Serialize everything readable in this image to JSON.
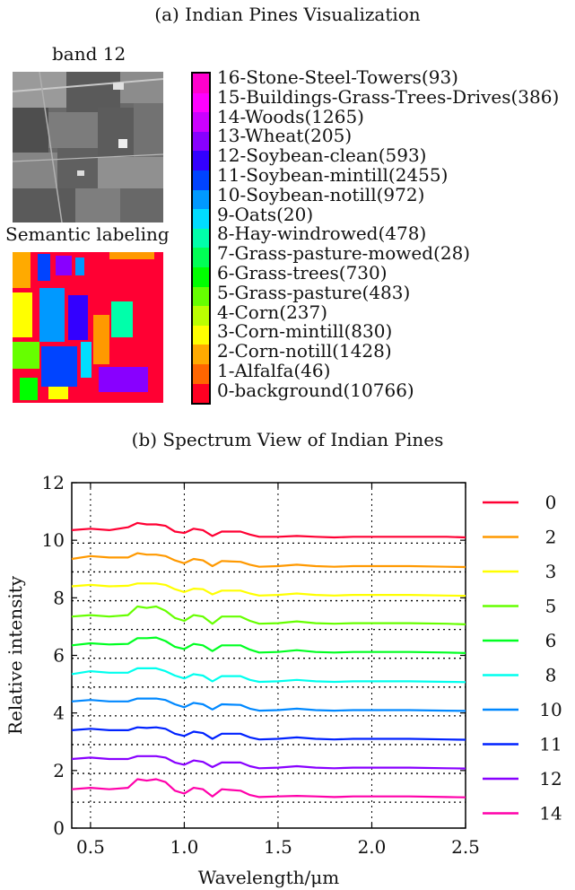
{
  "figure": {
    "caption_a": "(a) Indian Pines Visualization",
    "caption_b": "(b) Spectrum View of Indian Pines",
    "band_title": "band 12",
    "semantic_title": "Semantic labeling"
  },
  "classes": [
    {
      "label": "16-Stone-Steel-Towers(93)",
      "color": "#ff00cc"
    },
    {
      "label": "15-Buildings-Grass-Trees-Drives(386)",
      "color": "#ff00ff"
    },
    {
      "label": "14-Woods(1265)",
      "color": "#cc00ff"
    },
    {
      "label": "13-Wheat(205)",
      "color": "#8800ff"
    },
    {
      "label": "12-Soybean-clean(593)",
      "color": "#3300ff"
    },
    {
      "label": "11-Soybean-mintill(2455)",
      "color": "#0044ff"
    },
    {
      "label": "10-Soybean-notill(972)",
      "color": "#0099ff"
    },
    {
      "label": "9-Oats(20)",
      "color": "#00ddff"
    },
    {
      "label": "8-Hay-windrowed(478)",
      "color": "#00ffaa"
    },
    {
      "label": "7-Grass-pasture-mowed(28)",
      "color": "#00ff55"
    },
    {
      "label": "6-Grass-trees(730)",
      "color": "#00ff00"
    },
    {
      "label": "5-Grass-pasture(483)",
      "color": "#66ff00"
    },
    {
      "label": "4-Corn(237)",
      "color": "#bbff00"
    },
    {
      "label": "3-Corn-mintill(830)",
      "color": "#ffff00"
    },
    {
      "label": "2-Corn-notill(1428)",
      "color": "#ffaa00"
    },
    {
      "label": "1-Alfalfa(46)",
      "color": "#ff6600"
    },
    {
      "label": "0-background(10766)",
      "color": "#ff0022"
    }
  ],
  "chart_data": {
    "type": "line",
    "title": "(b) Spectrum View of Indian Pines",
    "xlabel": "Wavelength/μm",
    "ylabel": "Relative intensity",
    "xlim": [
      0.4,
      2.5
    ],
    "ylim": [
      0,
      12
    ],
    "xticks": [
      "0.5",
      "1.0",
      "1.5",
      "2.0",
      "2.5"
    ],
    "yticks": [
      "0",
      "2",
      "4",
      "6",
      "8",
      "10",
      "12"
    ],
    "grid": "dotted",
    "legend_position": "right",
    "x": [
      0.4,
      0.5,
      0.6,
      0.7,
      0.75,
      0.8,
      0.85,
      0.9,
      0.95,
      1.0,
      1.05,
      1.1,
      1.15,
      1.2,
      1.3,
      1.35,
      1.4,
      1.5,
      1.6,
      1.7,
      1.8,
      1.9,
      2.0,
      2.2,
      2.4,
      2.5
    ],
    "series": [
      {
        "name": "0",
        "color": "#ff0033",
        "values": [
          10.35,
          10.4,
          10.35,
          10.45,
          10.6,
          10.55,
          10.55,
          10.5,
          10.3,
          10.25,
          10.4,
          10.35,
          10.15,
          10.3,
          10.3,
          10.2,
          10.12,
          10.12,
          10.15,
          10.12,
          10.1,
          10.12,
          10.12,
          10.12,
          10.12,
          10.1
        ]
      },
      {
        "name": "2",
        "color": "#ff9900",
        "values": [
          9.35,
          9.45,
          9.4,
          9.4,
          9.55,
          9.5,
          9.5,
          9.45,
          9.3,
          9.2,
          9.35,
          9.3,
          9.1,
          9.28,
          9.25,
          9.15,
          9.08,
          9.1,
          9.15,
          9.1,
          9.08,
          9.1,
          9.1,
          9.1,
          9.08,
          9.07
        ]
      },
      {
        "name": "3",
        "color": "#ffff00",
        "values": [
          8.4,
          8.45,
          8.4,
          8.42,
          8.5,
          8.5,
          8.5,
          8.45,
          8.3,
          8.2,
          8.32,
          8.3,
          8.12,
          8.25,
          8.25,
          8.15,
          8.08,
          8.1,
          8.15,
          8.1,
          8.08,
          8.1,
          8.1,
          8.1,
          8.08,
          8.07
        ]
      },
      {
        "name": "5",
        "color": "#66ff00",
        "values": [
          7.35,
          7.4,
          7.35,
          7.4,
          7.7,
          7.65,
          7.7,
          7.55,
          7.3,
          7.2,
          7.4,
          7.35,
          7.1,
          7.35,
          7.35,
          7.2,
          7.1,
          7.12,
          7.18,
          7.12,
          7.1,
          7.12,
          7.12,
          7.12,
          7.1,
          7.08
        ]
      },
      {
        "name": "6",
        "color": "#00ff22",
        "values": [
          6.35,
          6.42,
          6.38,
          6.4,
          6.6,
          6.6,
          6.62,
          6.5,
          6.3,
          6.22,
          6.4,
          6.35,
          6.15,
          6.35,
          6.35,
          6.2,
          6.1,
          6.12,
          6.18,
          6.12,
          6.1,
          6.12,
          6.12,
          6.12,
          6.1,
          6.08
        ]
      },
      {
        "name": "8",
        "color": "#00ffee",
        "values": [
          5.35,
          5.45,
          5.4,
          5.4,
          5.55,
          5.55,
          5.55,
          5.45,
          5.3,
          5.2,
          5.35,
          5.3,
          5.1,
          5.28,
          5.28,
          5.15,
          5.08,
          5.1,
          5.15,
          5.1,
          5.08,
          5.1,
          5.1,
          5.1,
          5.08,
          5.07
        ]
      },
      {
        "name": "10",
        "color": "#0088ff",
        "values": [
          4.4,
          4.45,
          4.4,
          4.4,
          4.5,
          4.5,
          4.5,
          4.45,
          4.3,
          4.2,
          4.35,
          4.3,
          4.12,
          4.3,
          4.28,
          4.15,
          4.08,
          4.1,
          4.15,
          4.1,
          4.08,
          4.1,
          4.1,
          4.1,
          4.08,
          4.07
        ]
      },
      {
        "name": "11",
        "color": "#0022ff",
        "values": [
          3.4,
          3.45,
          3.4,
          3.4,
          3.5,
          3.48,
          3.5,
          3.45,
          3.28,
          3.2,
          3.35,
          3.3,
          3.1,
          3.28,
          3.28,
          3.15,
          3.08,
          3.1,
          3.15,
          3.1,
          3.08,
          3.1,
          3.1,
          3.1,
          3.08,
          3.07
        ]
      },
      {
        "name": "12",
        "color": "#8800ff",
        "values": [
          2.4,
          2.45,
          2.4,
          2.4,
          2.5,
          2.5,
          2.5,
          2.45,
          2.28,
          2.2,
          2.35,
          2.3,
          2.12,
          2.28,
          2.28,
          2.15,
          2.08,
          2.1,
          2.15,
          2.1,
          2.08,
          2.1,
          2.1,
          2.1,
          2.08,
          2.07
        ]
      },
      {
        "name": "14",
        "color": "#ff00aa",
        "values": [
          1.35,
          1.4,
          1.35,
          1.4,
          1.7,
          1.65,
          1.7,
          1.6,
          1.3,
          1.2,
          1.4,
          1.35,
          1.1,
          1.35,
          1.3,
          1.15,
          1.08,
          1.1,
          1.12,
          1.1,
          1.08,
          1.1,
          1.1,
          1.1,
          1.08,
          1.07
        ]
      }
    ]
  }
}
